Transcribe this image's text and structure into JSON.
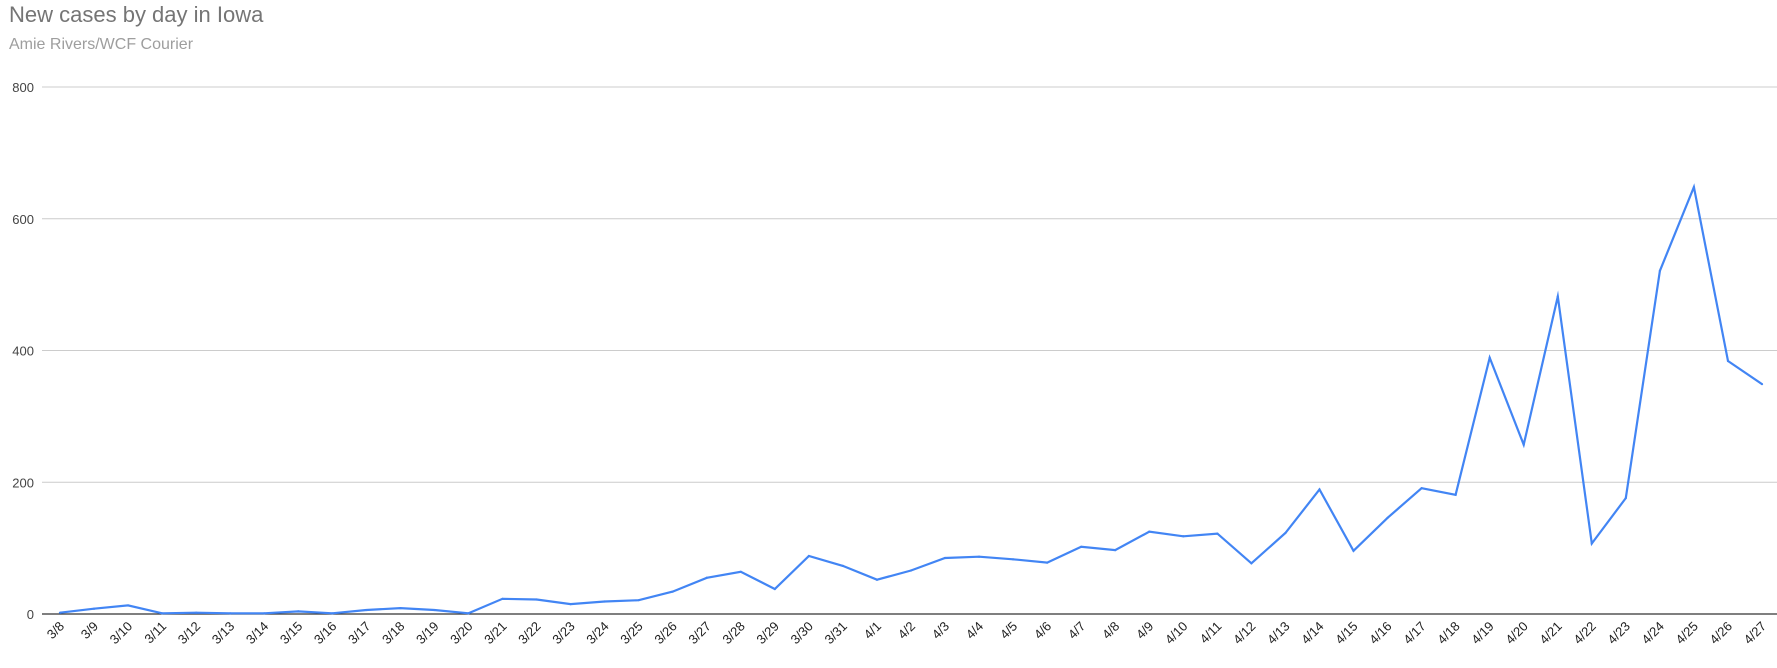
{
  "header": {
    "title": "New cases by day in Iowa",
    "subtitle": "Amie Rivers/WCF Courier"
  },
  "colors": {
    "line": "#4285f4",
    "grid": "#cccccc",
    "baseline": "#333333",
    "title": "#757575",
    "subtitle": "#9e9e9e"
  },
  "chart_data": {
    "type": "line",
    "title": "New cases by day in Iowa",
    "subtitle": "Amie Rivers/WCF Courier",
    "xlabel": "",
    "ylabel": "",
    "ylim": [
      0,
      800
    ],
    "yticks": [
      0,
      200,
      400,
      600,
      800
    ],
    "grid": true,
    "legend": "none",
    "categories": [
      "3/8",
      "3/9",
      "3/10",
      "3/11",
      "3/12",
      "3/13",
      "3/14",
      "3/15",
      "3/16",
      "3/17",
      "3/18",
      "3/19",
      "3/20",
      "3/21",
      "3/22",
      "3/23",
      "3/24",
      "3/25",
      "3/26",
      "3/27",
      "3/28",
      "3/29",
      "3/30",
      "3/31",
      "4/1",
      "4/2",
      "4/3",
      "4/4",
      "4/5",
      "4/6",
      "4/7",
      "4/8",
      "4/9",
      "4/10",
      "4/11",
      "4/12",
      "4/13",
      "4/14",
      "4/15",
      "4/16",
      "4/17",
      "4/18",
      "4/19",
      "4/20",
      "4/21",
      "4/22",
      "4/23",
      "4/24",
      "4/25",
      "4/26",
      "4/27"
    ],
    "series": [
      {
        "values": [
          2,
          8,
          13,
          1,
          2,
          1,
          1,
          4,
          1,
          6,
          9,
          6,
          1,
          23,
          22,
          15,
          19,
          21,
          34,
          55,
          64,
          38,
          88,
          73,
          52,
          66,
          85,
          87,
          83,
          78,
          102,
          97,
          125,
          118,
          122,
          77,
          123,
          189,
          96,
          146,
          191,
          181,
          389,
          257,
          482,
          107,
          176,
          521,
          648,
          384,
          349
        ]
      }
    ]
  }
}
